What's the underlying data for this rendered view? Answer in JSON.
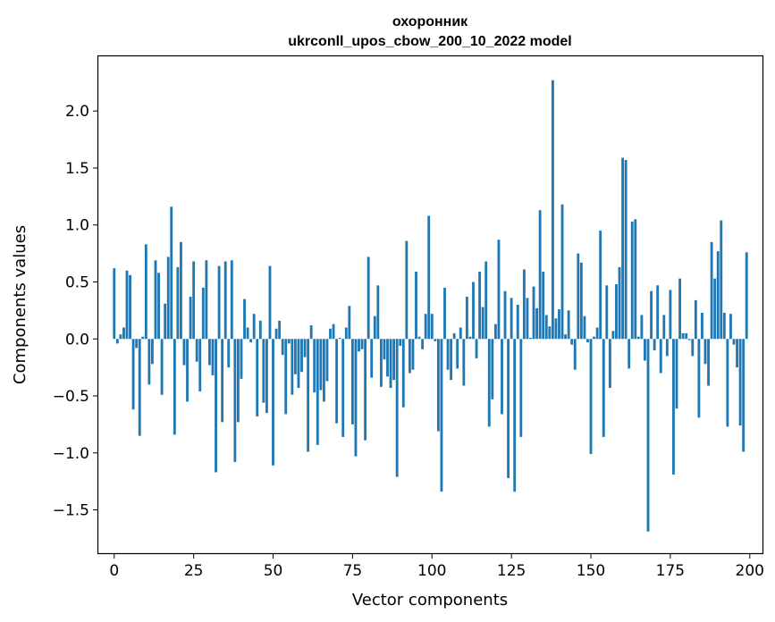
{
  "chart_data": {
    "type": "bar",
    "title": "охоронник",
    "subtitle": "ukrconll_upos_cbow_200_10_2022 model",
    "xlabel": "Vector components",
    "ylabel": "Components values",
    "xlim": [
      -5,
      204
    ],
    "ylim": [
      -1.88,
      2.48
    ],
    "xticks": [
      0,
      25,
      50,
      75,
      100,
      125,
      150,
      175,
      200
    ],
    "xtick_labels": [
      "0",
      "25",
      "50",
      "75",
      "100",
      "125",
      "150",
      "175",
      "200"
    ],
    "yticks": [
      2.0,
      1.5,
      1.0,
      0.5,
      0.0,
      -0.5,
      -1.0,
      -1.5
    ],
    "ytick_labels": [
      "2.0",
      "1.5",
      "1.0",
      "0.5",
      "0.0",
      "−0.5",
      "−1.0",
      "−1.5"
    ],
    "bar_color": "#1f77b4",
    "grid": false,
    "values": [
      0.62,
      -0.04,
      0.04,
      0.1,
      0.6,
      0.56,
      -0.62,
      -0.08,
      -0.85,
      0.02,
      0.83,
      -0.4,
      -0.22,
      0.69,
      0.58,
      -0.49,
      0.31,
      0.72,
      1.16,
      -0.84,
      0.63,
      0.85,
      -0.23,
      -0.55,
      0.37,
      0.68,
      -0.2,
      -0.46,
      0.45,
      0.69,
      -0.23,
      -0.32,
      -1.17,
      0.64,
      -0.73,
      0.68,
      -0.25,
      0.69,
      -1.08,
      -0.73,
      -0.35,
      0.35,
      0.1,
      -0.03,
      0.22,
      -0.68,
      0.16,
      -0.56,
      -0.65,
      0.64,
      -1.11,
      0.09,
      0.16,
      -0.14,
      -0.66,
      -0.04,
      -0.49,
      -0.31,
      -0.43,
      -0.29,
      -0.16,
      -0.99,
      0.12,
      -0.47,
      -0.93,
      -0.45,
      -0.55,
      -0.37,
      0.09,
      0.13,
      -0.74,
      0.01,
      -0.86,
      0.1,
      0.29,
      -0.75,
      -1.03,
      -0.11,
      -0.09,
      -0.89,
      0.72,
      -0.34,
      0.2,
      0.47,
      -0.42,
      -0.18,
      -0.33,
      -0.43,
      -0.36,
      -1.21,
      -0.06,
      -0.6,
      0.86,
      -0.3,
      -0.27,
      0.59,
      0.02,
      -0.09,
      0.22,
      1.08,
      0.22,
      -0.02,
      -0.81,
      -1.34,
      0.45,
      -0.27,
      -0.36,
      0.05,
      -0.26,
      0.1,
      -0.41,
      0.37,
      0.02,
      0.5,
      -0.17,
      0.59,
      0.28,
      0.68,
      -0.77,
      -0.53,
      0.13,
      0.87,
      -0.66,
      0.42,
      -1.22,
      0.36,
      -1.34,
      0.3,
      -0.86,
      0.61,
      0.36,
      0.01,
      0.46,
      0.27,
      1.13,
      0.59,
      0.21,
      0.11,
      2.27,
      0.18,
      0.26,
      1.18,
      0.04,
      0.25,
      -0.05,
      -0.27,
      0.75,
      0.67,
      0.2,
      -0.03,
      -1.01,
      0.02,
      0.1,
      0.95,
      -0.86,
      0.47,
      -0.43,
      0.07,
      0.48,
      0.63,
      1.59,
      1.57,
      -0.26,
      1.03,
      1.05,
      0.02,
      0.21,
      -0.19,
      -1.69,
      0.42,
      -0.1,
      0.47,
      -0.3,
      0.21,
      -0.15,
      0.43,
      -1.19,
      -0.61,
      0.53,
      0.05,
      0.05,
      -0.01,
      -0.15,
      0.34,
      -0.69,
      0.23,
      -0.22,
      -0.41,
      0.85,
      0.53,
      0.77,
      1.04,
      0.23,
      -0.77,
      0.22,
      -0.05,
      -0.25,
      -0.76,
      -0.99,
      0.76
    ]
  }
}
